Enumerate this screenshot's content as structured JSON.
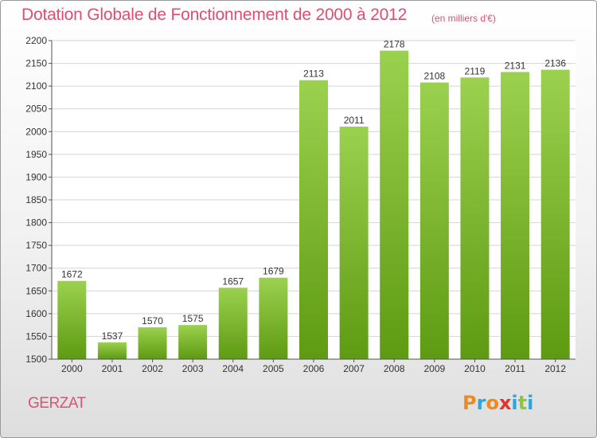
{
  "title": "Dotation Globale de Fonctionnement de 2000 à 2012",
  "unit_note": "(en milliers d'€)",
  "commune": "GERZAT",
  "logo": {
    "text": "Proxiti",
    "letters": [
      {
        "ch": "P",
        "color": "#f08a1c"
      },
      {
        "ch": "r",
        "color": "#29a8e0"
      },
      {
        "ch": "o",
        "color": "#f08a1c"
      },
      {
        "ch": "x",
        "color": "#e0352b"
      },
      {
        "ch": "i",
        "color": "#29a8e0"
      },
      {
        "ch": "t",
        "color": "#8cc63f"
      },
      {
        "ch": "i",
        "color": "#29a8e0"
      }
    ]
  },
  "colors": {
    "title": "#dd4e72",
    "bar_top": "#9bd14f",
    "bar_bottom": "#5e9a12",
    "grid": "#d4d4d4",
    "axis": "#555555",
    "text": "#333333"
  },
  "chart_data": {
    "type": "bar",
    "title": "Dotation Globale de Fonctionnement de 2000 à 2012",
    "xlabel": "",
    "ylabel": "",
    "categories": [
      "2000",
      "2001",
      "2002",
      "2003",
      "2004",
      "2005",
      "2006",
      "2007",
      "2008",
      "2009",
      "2010",
      "2011",
      "2012"
    ],
    "values": [
      1672,
      1537,
      1570,
      1575,
      1657,
      1679,
      2113,
      2011,
      2178,
      2108,
      2119,
      2131,
      2136
    ],
    "ylim": [
      1500,
      2200
    ],
    "yticks": [
      1500,
      1550,
      1600,
      1650,
      1700,
      1750,
      1800,
      1850,
      1900,
      1950,
      2000,
      2050,
      2100,
      2150,
      2200
    ],
    "grid": true,
    "data_labels": true,
    "legend": "none"
  }
}
